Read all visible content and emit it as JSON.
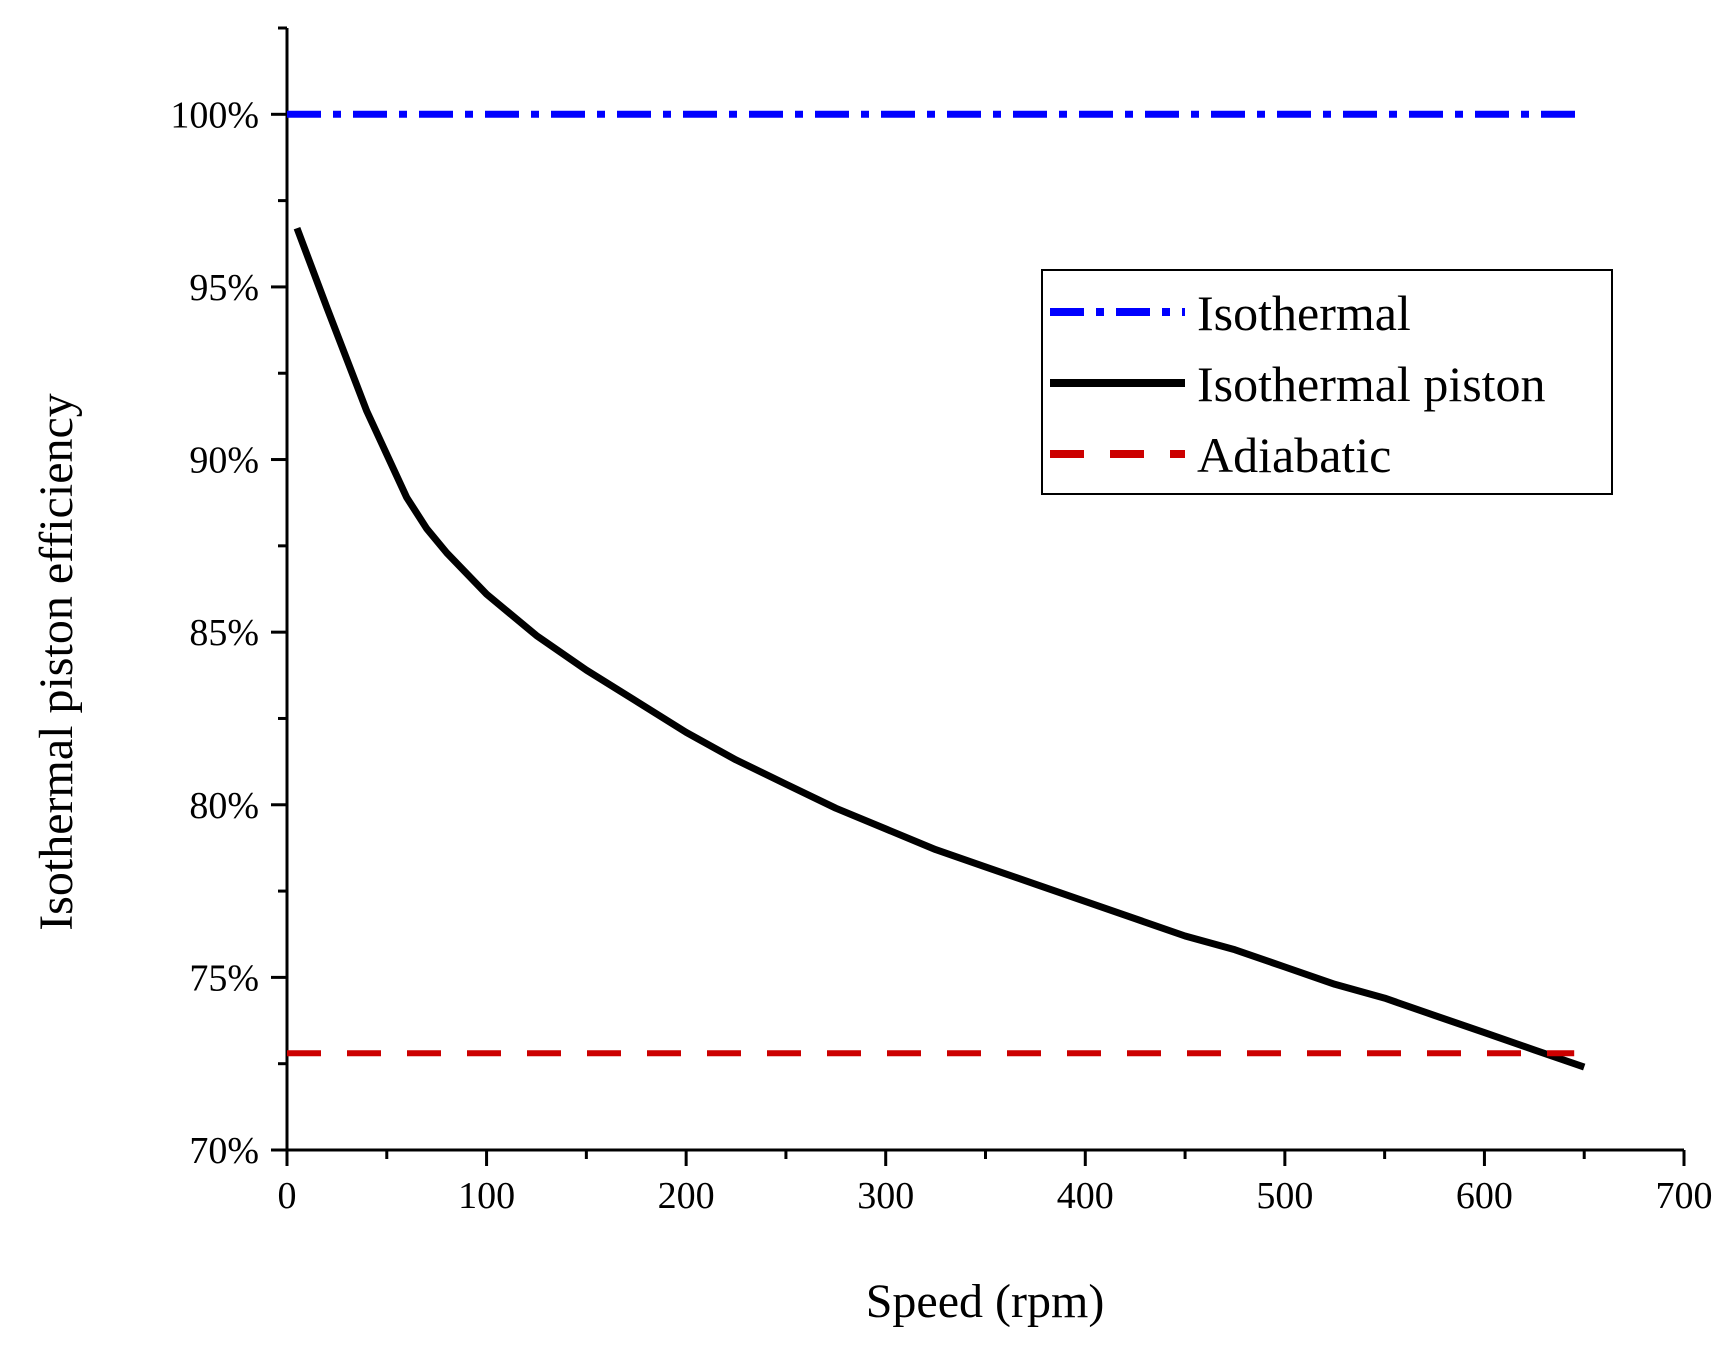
{
  "chart_data": {
    "type": "line",
    "title": "",
    "xlabel": "Speed (rpm)",
    "ylabel": "Isothermal piston efficiency",
    "xlim": [
      0,
      700
    ],
    "ylim": [
      70,
      102.5
    ],
    "x_ticks": [
      0,
      100,
      200,
      300,
      400,
      500,
      600,
      700
    ],
    "x_tick_labels": [
      "0",
      "100",
      "200",
      "300",
      "400",
      "500",
      "600",
      "700"
    ],
    "y_ticks": [
      70,
      75,
      80,
      85,
      90,
      95,
      100
    ],
    "y_tick_labels": [
      "70%",
      "75%",
      "80%",
      "85%",
      "90%",
      "95%",
      "100%"
    ],
    "grid": false,
    "legend_position": "top-right",
    "series": [
      {
        "name": "Isothermal",
        "color": "#0000ff",
        "style": "dash-dot",
        "x": [
          0,
          650
        ],
        "y": [
          100,
          100
        ]
      },
      {
        "name": "Isothermal piston",
        "color": "#000000",
        "style": "solid",
        "x": [
          5,
          20,
          40,
          60,
          70,
          80,
          100,
          125,
          150,
          175,
          200,
          225,
          250,
          275,
          300,
          325,
          350,
          375,
          400,
          425,
          450,
          475,
          500,
          525,
          550,
          575,
          600,
          625,
          650
        ],
        "y": [
          96.7,
          94.4,
          91.4,
          88.9,
          88.0,
          87.3,
          86.1,
          84.9,
          83.9,
          83.0,
          82.1,
          81.3,
          80.6,
          79.9,
          79.3,
          78.7,
          78.2,
          77.7,
          77.2,
          76.7,
          76.2,
          75.8,
          75.3,
          74.8,
          74.4,
          73.9,
          73.4,
          72.9,
          72.4
        ]
      },
      {
        "name": "Adiabatic",
        "color": "#cc0000",
        "style": "dashed",
        "x": [
          0,
          645
        ],
        "y": [
          72.8,
          72.8
        ]
      }
    ]
  }
}
